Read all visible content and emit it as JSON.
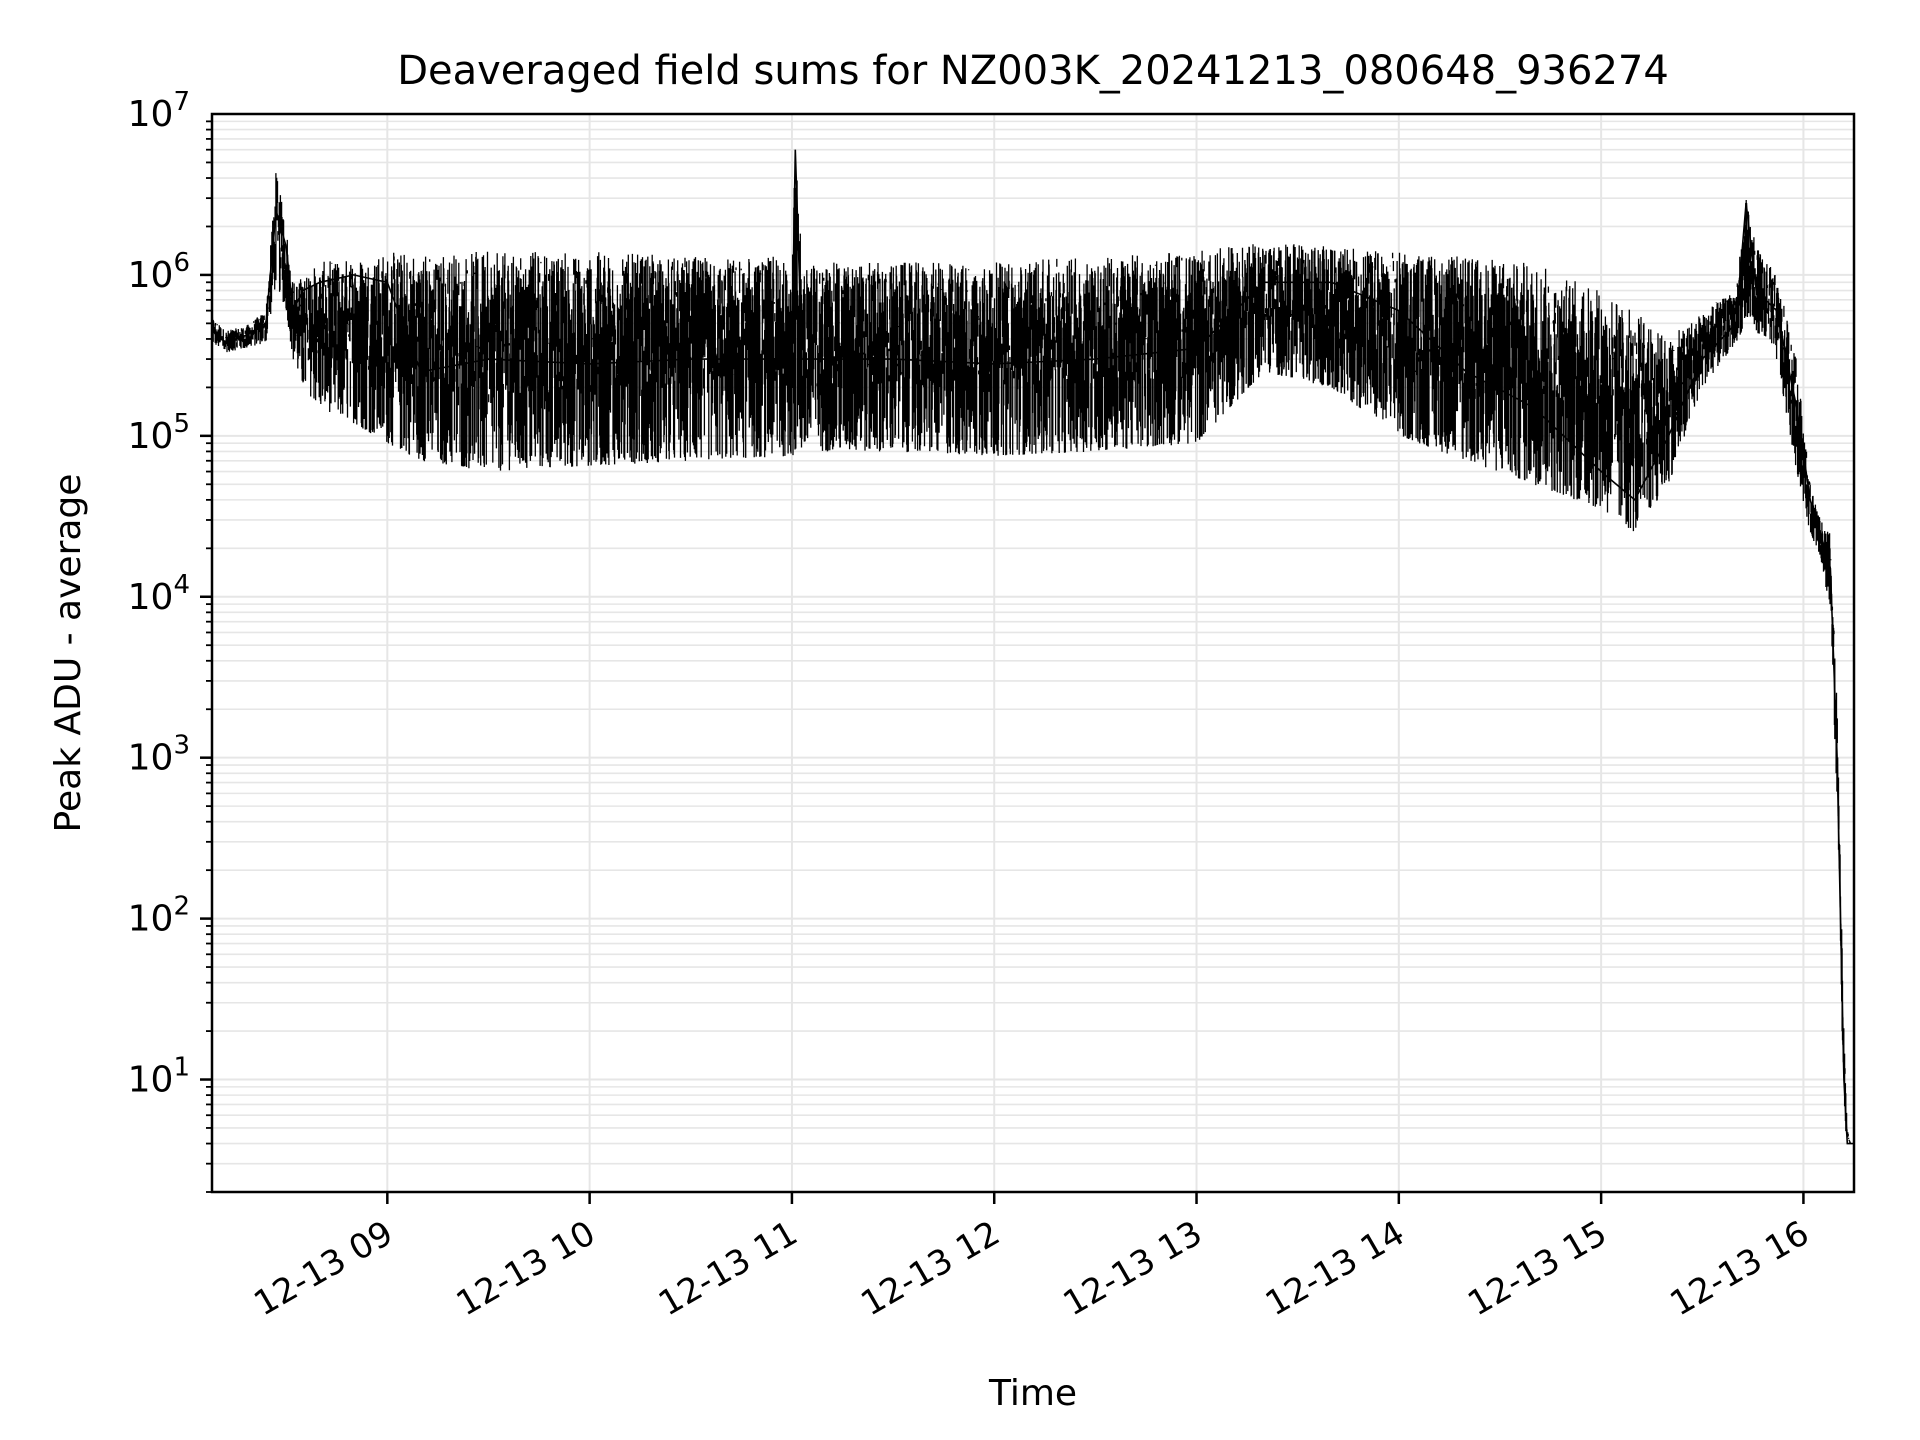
{
  "chart_data": {
    "type": "line",
    "title": "Deaveraged field sums for NZ003K_20241213_080648_936274",
    "xlabel": "Time",
    "ylabel": "Peak ADU - average",
    "yscale": "log",
    "ylim": [
      2,
      10000000
    ],
    "xlim": [
      "2024-12-13 08:08",
      "2024-12-13 16:15"
    ],
    "grid": true,
    "line_color": "#000000",
    "grid_color": "#e6e6e6",
    "xticks": [
      {
        "label": "12-13 09",
        "x": "2024-12-13 09:00"
      },
      {
        "label": "12-13 10",
        "x": "2024-12-13 10:00"
      },
      {
        "label": "12-13 11",
        "x": "2024-12-13 11:00"
      },
      {
        "label": "12-13 12",
        "x": "2024-12-13 12:00"
      },
      {
        "label": "12-13 13",
        "x": "2024-12-13 13:00"
      },
      {
        "label": "12-13 14",
        "x": "2024-12-13 14:00"
      },
      {
        "label": "12-13 15",
        "x": "2024-12-13 15:00"
      },
      {
        "label": "12-13 16",
        "x": "2024-12-13 16:00"
      }
    ],
    "yticks": [
      {
        "base": "10",
        "exp": "1",
        "value": 10
      },
      {
        "base": "10",
        "exp": "2",
        "value": 100
      },
      {
        "base": "10",
        "exp": "3",
        "value": 1000
      },
      {
        "base": "10",
        "exp": "4",
        "value": 10000
      },
      {
        "base": "10",
        "exp": "5",
        "value": 100000
      },
      {
        "base": "10",
        "exp": "6",
        "value": 1000000
      },
      {
        "base": "10",
        "exp": "7",
        "value": 10000000
      }
    ],
    "series": [
      {
        "x": [
          "2024-12-13 08:08",
          "2024-12-13 08:12",
          "2024-12-13 08:18",
          "2024-12-13 08:24",
          "2024-12-13 08:27",
          "2024-12-13 08:30",
          "2024-12-13 08:32",
          "2024-12-13 08:35",
          "2024-12-13 08:40",
          "2024-12-13 08:50",
          "2024-12-13 09:00",
          "2024-12-13 09:10",
          "2024-12-13 09:30",
          "2024-12-13 10:00",
          "2024-12-13 10:30",
          "2024-12-13 11:00",
          "2024-12-13 11:01",
          "2024-12-13 11:03",
          "2024-12-13 11:30",
          "2024-12-13 12:00",
          "2024-12-13 12:30",
          "2024-12-13 13:00",
          "2024-12-13 13:20",
          "2024-12-13 13:40",
          "2024-12-13 14:00",
          "2024-12-13 14:20",
          "2024-12-13 14:40",
          "2024-12-13 15:00",
          "2024-12-13 15:10",
          "2024-12-13 15:20",
          "2024-12-13 15:30",
          "2024-12-13 15:40",
          "2024-12-13 15:43",
          "2024-12-13 15:46",
          "2024-12-13 15:52",
          "2024-12-13 15:58",
          "2024-12-13 16:02",
          "2024-12-13 16:05",
          "2024-12-13 16:08",
          "2024-12-13 16:10",
          "2024-12-13 16:11",
          "2024-12-13 16:12",
          "2024-12-13 16:13",
          "2024-12-13 16:14",
          "2024-12-13 16:15"
        ],
        "y": [
          450000,
          380000,
          420000,
          500000,
          2500000,
          1500000,
          600000,
          800000,
          900000,
          1000000,
          900000,
          250000,
          300000,
          280000,
          300000,
          300000,
          6000000,
          300000,
          300000,
          280000,
          300000,
          350000,
          900000,
          900000,
          600000,
          250000,
          150000,
          60000,
          40000,
          100000,
          300000,
          500000,
          2800000,
          800000,
          600000,
          150000,
          40000,
          25000,
          15000,
          1000,
          100,
          10,
          4,
          4,
          4
        ],
        "band_lo": [
          380000,
          330000,
          350000,
          380000,
          900000,
          600000,
          300000,
          200000,
          150000,
          120000,
          90000,
          70000,
          60000,
          65000,
          70000,
          75000,
          75000,
          80000,
          80000,
          75000,
          80000,
          90000,
          250000,
          200000,
          100000,
          70000,
          50000,
          35000,
          25000,
          50000,
          200000,
          380000,
          500000,
          450000,
          300000,
          60000,
          25000,
          18000,
          8000,
          500,
          60,
          6,
          4,
          4,
          4
        ],
        "band_hi": [
          550000,
          450000,
          480000,
          600000,
          4500000,
          2000000,
          900000,
          1000000,
          1200000,
          1300000,
          1400000,
          1400000,
          1400000,
          1400000,
          1300000,
          1300000,
          6000000,
          1200000,
          1200000,
          1200000,
          1300000,
          1400000,
          1600000,
          1500000,
          1400000,
          1300000,
          1200000,
          800000,
          600000,
          400000,
          600000,
          800000,
          3000000,
          1500000,
          1000000,
          300000,
          50000,
          30000,
          25000,
          2000,
          200,
          20,
          5,
          4,
          4
        ]
      }
    ]
  }
}
